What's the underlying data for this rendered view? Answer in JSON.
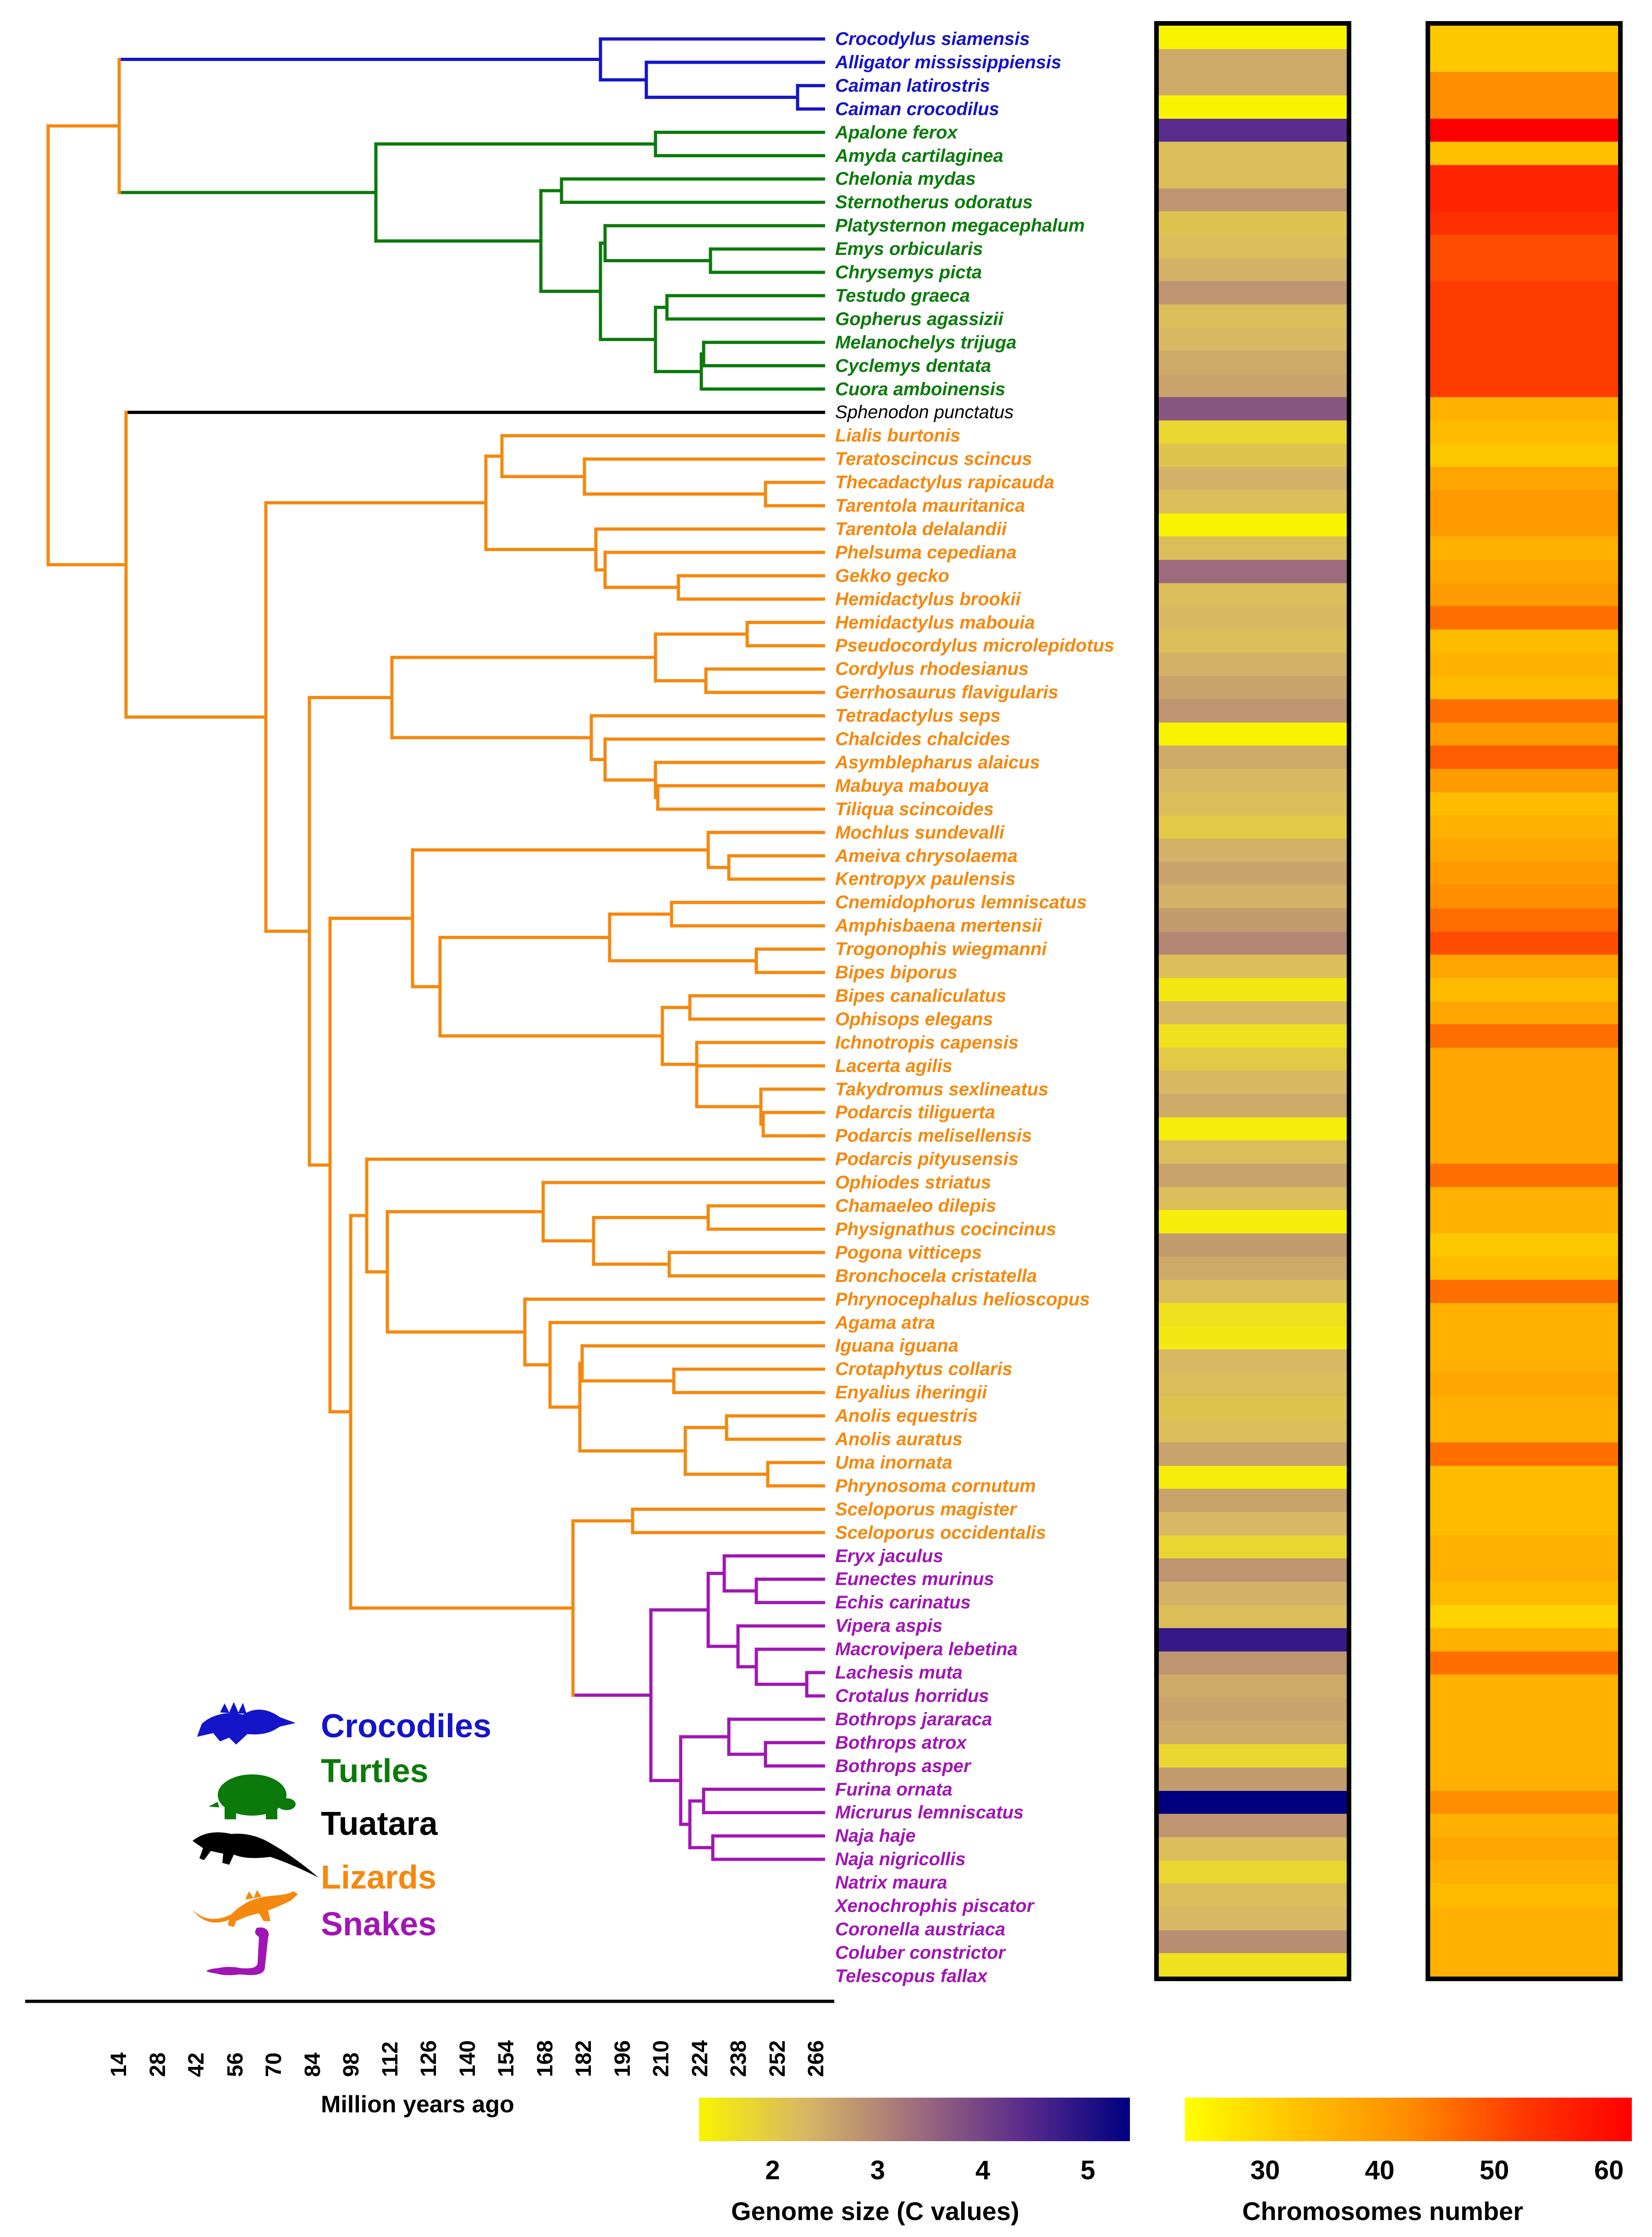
{
  "colors": {
    "crocodiles": "#1414c8",
    "turtles": "#0b7a0b",
    "tuatara": "#000000",
    "lizards": "#f5880e",
    "snakes": "#a016b4"
  },
  "clades": [
    {
      "key": "crocodiles",
      "label": "Crocodiles",
      "icon": "crocodile-icon"
    },
    {
      "key": "turtles",
      "label": "Turtles",
      "icon": "turtle-icon"
    },
    {
      "key": "tuatara",
      "label": "Tuatara",
      "icon": "tuatara-icon"
    },
    {
      "key": "lizards",
      "label": "Lizards",
      "icon": "lizard-icon"
    },
    {
      "key": "snakes",
      "label": "Snakes",
      "icon": "snake-icon"
    }
  ],
  "taxa": [
    {
      "name": "Crocodylus siamensis",
      "clade": "crocodiles",
      "genome_size": 1.2,
      "chromosomes": 32
    },
    {
      "name": "Alligator mississippiensis",
      "clade": "crocodiles",
      "genome_size": 2.5,
      "chromosomes": 32
    },
    {
      "name": "Caiman latirostris",
      "clade": "crocodiles",
      "genome_size": 2.5,
      "chromosomes": 42
    },
    {
      "name": "Caiman crocodilus",
      "clade": "crocodiles",
      "genome_size": 1.3,
      "chromosomes": 42
    },
    {
      "name": "Apalone ferox",
      "clade": "turtles",
      "genome_size": 4.4,
      "chromosomes": 66
    },
    {
      "name": "Amyda cartilaginea",
      "clade": "turtles",
      "genome_size": 2.2,
      "chromosomes": 33
    },
    {
      "name": "Chelonia mydas",
      "clade": "turtles",
      "genome_size": 2.2,
      "chromosomes": 56
    },
    {
      "name": "Sternotherus odoratus",
      "clade": "turtles",
      "genome_size": 2.8,
      "chromosomes": 56
    },
    {
      "name": "Platysternon megacephalum",
      "clade": "turtles",
      "genome_size": 2.1,
      "chromosomes": 54
    },
    {
      "name": "Emys orbicularis",
      "clade": "turtles",
      "genome_size": 2.2,
      "chromosomes": 50
    },
    {
      "name": "Chrysemys picta",
      "clade": "turtles",
      "genome_size": 2.4,
      "chromosomes": 50
    },
    {
      "name": "Testudo graeca",
      "clade": "turtles",
      "genome_size": 2.8,
      "chromosomes": 52
    },
    {
      "name": "Gopherus agassizii",
      "clade": "turtles",
      "genome_size": 2.2,
      "chromosomes": 52
    },
    {
      "name": "Melanochelys trijuga",
      "clade": "turtles",
      "genome_size": 2.3,
      "chromosomes": 52
    },
    {
      "name": "Cyclemys dentata",
      "clade": "turtles",
      "genome_size": 2.5,
      "chromosomes": 52
    },
    {
      "name": "Cuora amboinensis",
      "clade": "turtles",
      "genome_size": 2.6,
      "chromosomes": 52
    },
    {
      "name": "Sphenodon punctatus",
      "clade": "tuatara",
      "genome_size": 3.7,
      "chromosomes": 36
    },
    {
      "name": "Lialis burtonis",
      "clade": "lizards",
      "genome_size": 1.8,
      "chromosomes": 34
    },
    {
      "name": "Teratoscincus scincus",
      "clade": "lizards",
      "genome_size": 2.1,
      "chromosomes": 32
    },
    {
      "name": "Thecadactylus rapicauda",
      "clade": "lizards",
      "genome_size": 2.4,
      "chromosomes": 38
    },
    {
      "name": "Tarentola mauritanica",
      "clade": "lizards",
      "genome_size": 2.2,
      "chromosomes": 40
    },
    {
      "name": "Tarentola delalandii",
      "clade": "lizards",
      "genome_size": 1.3,
      "chromosomes": 40
    },
    {
      "name": "Phelsuma cepediana",
      "clade": "lizards",
      "genome_size": 2.2,
      "chromosomes": 36
    },
    {
      "name": "Gekko gecko",
      "clade": "lizards",
      "genome_size": 3.4,
      "chromosomes": 38
    },
    {
      "name": "Hemidactylus brookii",
      "clade": "lizards",
      "genome_size": 2.2,
      "chromosomes": 40
    },
    {
      "name": "Hemidactylus mabouia",
      "clade": "lizards",
      "genome_size": 2.3,
      "chromosomes": 46
    },
    {
      "name": "Pseudocordylus microlepidotus",
      "clade": "lizards",
      "genome_size": 2.2,
      "chromosomes": 34
    },
    {
      "name": "Cordylus rhodesianus",
      "clade": "lizards",
      "genome_size": 2.4,
      "chromosomes": 36
    },
    {
      "name": "Gerrhosaurus flavigularis",
      "clade": "lizards",
      "genome_size": 2.6,
      "chromosomes": 34
    },
    {
      "name": "Tetradactylus seps",
      "clade": "lizards",
      "genome_size": 2.8,
      "chromosomes": 46
    },
    {
      "name": "Chalcides chalcides",
      "clade": "lizards",
      "genome_size": 1.3,
      "chromosomes": 40
    },
    {
      "name": "Asymblepharus alaicus",
      "clade": "lizards",
      "genome_size": 2.5,
      "chromosomes": 48
    },
    {
      "name": "Mabuya mabouya",
      "clade": "lizards",
      "genome_size": 2.3,
      "chromosomes": 40
    },
    {
      "name": "Tiliqua scincoides",
      "clade": "lizards",
      "genome_size": 2.2,
      "chromosomes": 34
    },
    {
      "name": "Mochlus sundevalli",
      "clade": "lizards",
      "genome_size": 2.0,
      "chromosomes": 36
    },
    {
      "name": "Ameiva chrysolaema",
      "clade": "lizards",
      "genome_size": 2.4,
      "chromosomes": 38
    },
    {
      "name": "Kentropyx paulensis",
      "clade": "lizards",
      "genome_size": 2.6,
      "chromosomes": 40
    },
    {
      "name": "Cnemidophorus lemniscatus",
      "clade": "lizards",
      "genome_size": 2.4,
      "chromosomes": 42
    },
    {
      "name": "Amphisbaena mertensii",
      "clade": "lizards",
      "genome_size": 2.7,
      "chromosomes": 46
    },
    {
      "name": "Trogonophis wiegmanni",
      "clade": "lizards",
      "genome_size": 3.0,
      "chromosomes": 50
    },
    {
      "name": "Bipes biporus",
      "clade": "lizards",
      "genome_size": 2.2,
      "chromosomes": 38
    },
    {
      "name": "Bipes canaliculatus",
      "clade": "lizards",
      "genome_size": 1.5,
      "chromosomes": 34
    },
    {
      "name": "Ophisops elegans",
      "clade": "lizards",
      "genome_size": 2.3,
      "chromosomes": 38
    },
    {
      "name": "Ichnotropis capensis",
      "clade": "lizards",
      "genome_size": 1.6,
      "chromosomes": 46
    },
    {
      "name": "Lacerta agilis",
      "clade": "lizards",
      "genome_size": 2.0,
      "chromosomes": 38
    },
    {
      "name": "Takydromus sexlineatus",
      "clade": "lizards",
      "genome_size": 2.3,
      "chromosomes": 38
    },
    {
      "name": "Podarcis tiliguerta",
      "clade": "lizards",
      "genome_size": 2.5,
      "chromosomes": 38
    },
    {
      "name": "Podarcis melisellensis",
      "clade": "lizards",
      "genome_size": 1.4,
      "chromosomes": 38
    },
    {
      "name": "Podarcis pityusensis",
      "clade": "lizards",
      "genome_size": 2.2,
      "chromosomes": 38
    },
    {
      "name": "Ophiodes striatus",
      "clade": "lizards",
      "genome_size": 2.6,
      "chromosomes": 46
    },
    {
      "name": "Chamaeleo dilepis",
      "clade": "lizards",
      "genome_size": 2.2,
      "chromosomes": 36
    },
    {
      "name": "Physignathus cocincinus",
      "clade": "lizards",
      "genome_size": 1.4,
      "chromosomes": 36
    },
    {
      "name": "Pogona vitticeps",
      "clade": "lizards",
      "genome_size": 2.7,
      "chromosomes": 32
    },
    {
      "name": "Bronchocela cristatella",
      "clade": "lizards",
      "genome_size": 2.5,
      "chromosomes": 34
    },
    {
      "name": "Phrynocephalus helioscopus",
      "clade": "lizards",
      "genome_size": 2.2,
      "chromosomes": 46
    },
    {
      "name": "Agama atra",
      "clade": "lizards",
      "genome_size": 1.6,
      "chromosomes": 36
    },
    {
      "name": "Iguana iguana",
      "clade": "lizards",
      "genome_size": 1.5,
      "chromosomes": 36
    },
    {
      "name": "Crotaphytus collaris",
      "clade": "lizards",
      "genome_size": 2.3,
      "chromosomes": 36
    },
    {
      "name": "Enyalius iheringii",
      "clade": "lizards",
      "genome_size": 2.2,
      "chromosomes": 38
    },
    {
      "name": "Anolis equestris",
      "clade": "lizards",
      "genome_size": 2.1,
      "chromosomes": 36
    },
    {
      "name": "Anolis auratus",
      "clade": "lizards",
      "genome_size": 2.2,
      "chromosomes": 36
    },
    {
      "name": "Uma inornata",
      "clade": "lizards",
      "genome_size": 2.6,
      "chromosomes": 46
    },
    {
      "name": "Phrynosoma cornutum",
      "clade": "lizards",
      "genome_size": 1.4,
      "chromosomes": 34
    },
    {
      "name": "Sceloporus magister",
      "clade": "lizards",
      "genome_size": 2.6,
      "chromosomes": 34
    },
    {
      "name": "Sceloporus occidentalis",
      "clade": "lizards",
      "genome_size": 2.3,
      "chromosomes": 34
    },
    {
      "name": "Eryx jaculus",
      "clade": "snakes",
      "genome_size": 1.8,
      "chromosomes": 36
    },
    {
      "name": "Eunectes murinus",
      "clade": "snakes",
      "genome_size": 2.8,
      "chromosomes": 36
    },
    {
      "name": "Echis carinatus",
      "clade": "snakes",
      "genome_size": 2.4,
      "chromosomes": 34
    },
    {
      "name": "Vipera aspis",
      "clade": "snakes",
      "genome_size": 2.2,
      "chromosomes": 30
    },
    {
      "name": "Macrovipera lebetina",
      "clade": "snakes",
      "genome_size": 4.8,
      "chromosomes": 36
    },
    {
      "name": "Lachesis muta",
      "clade": "snakes",
      "genome_size": 2.8,
      "chromosomes": 46
    },
    {
      "name": "Crotalus horridus",
      "clade": "snakes",
      "genome_size": 2.5,
      "chromosomes": 36
    },
    {
      "name": "Bothrops jararaca",
      "clade": "snakes",
      "genome_size": 2.6,
      "chromosomes": 36
    },
    {
      "name": "Bothrops atrox",
      "clade": "snakes",
      "genome_size": 2.5,
      "chromosomes": 36
    },
    {
      "name": "Bothrops asper",
      "clade": "snakes",
      "genome_size": 1.8,
      "chromosomes": 36
    },
    {
      "name": "Furina ornata",
      "clade": "snakes",
      "genome_size": 2.7,
      "chromosomes": 36
    },
    {
      "name": "Micrurus lemniscatus",
      "clade": "snakes",
      "genome_size": 5.4,
      "chromosomes": 42
    },
    {
      "name": "Naja haje",
      "clade": "snakes",
      "genome_size": 2.8,
      "chromosomes": 36
    },
    {
      "name": "Naja nigricollis",
      "clade": "snakes",
      "genome_size": 2.2,
      "chromosomes": 38
    },
    {
      "name": "Natrix maura",
      "clade": "snakes",
      "genome_size": 1.8,
      "chromosomes": 36
    },
    {
      "name": "Xenochrophis piscator",
      "clade": "snakes",
      "genome_size": 2.2,
      "chromosomes": 34
    },
    {
      "name": "Coronella austriaca",
      "clade": "snakes",
      "genome_size": 2.3,
      "chromosomes": 36
    },
    {
      "name": "Coluber constrictor",
      "clade": "snakes",
      "genome_size": 2.9,
      "chromosomes": 36
    },
    {
      "name": "Telescopus fallax",
      "clade": "snakes",
      "genome_size": 1.6,
      "chromosomes": 36
    }
  ],
  "time_axis": {
    "title": "Million years ago",
    "ticks": [
      "14",
      "28",
      "42",
      "56",
      "70",
      "84",
      "98",
      "112",
      "126",
      "140",
      "154",
      "168",
      "182",
      "196",
      "210",
      "224",
      "238",
      "252",
      "266"
    ]
  },
  "genome_legend": {
    "title": "Genome size (C values)",
    "ticks": [
      "2",
      "3",
      "4",
      "5"
    ],
    "range": [
      1.3,
      5.4
    ],
    "stops": [
      "#f8f400",
      "#d7b665",
      "#a06e7c",
      "#5a2c8c",
      "#000080"
    ]
  },
  "chromosome_legend": {
    "title": "Chromosomes number",
    "ticks": [
      "30",
      "40",
      "50",
      "60"
    ],
    "range": [
      23,
      62
    ],
    "stops": [
      "#ffff00",
      "#ffc200",
      "#ff8c00",
      "#ff3a00",
      "#ff0000"
    ]
  }
}
